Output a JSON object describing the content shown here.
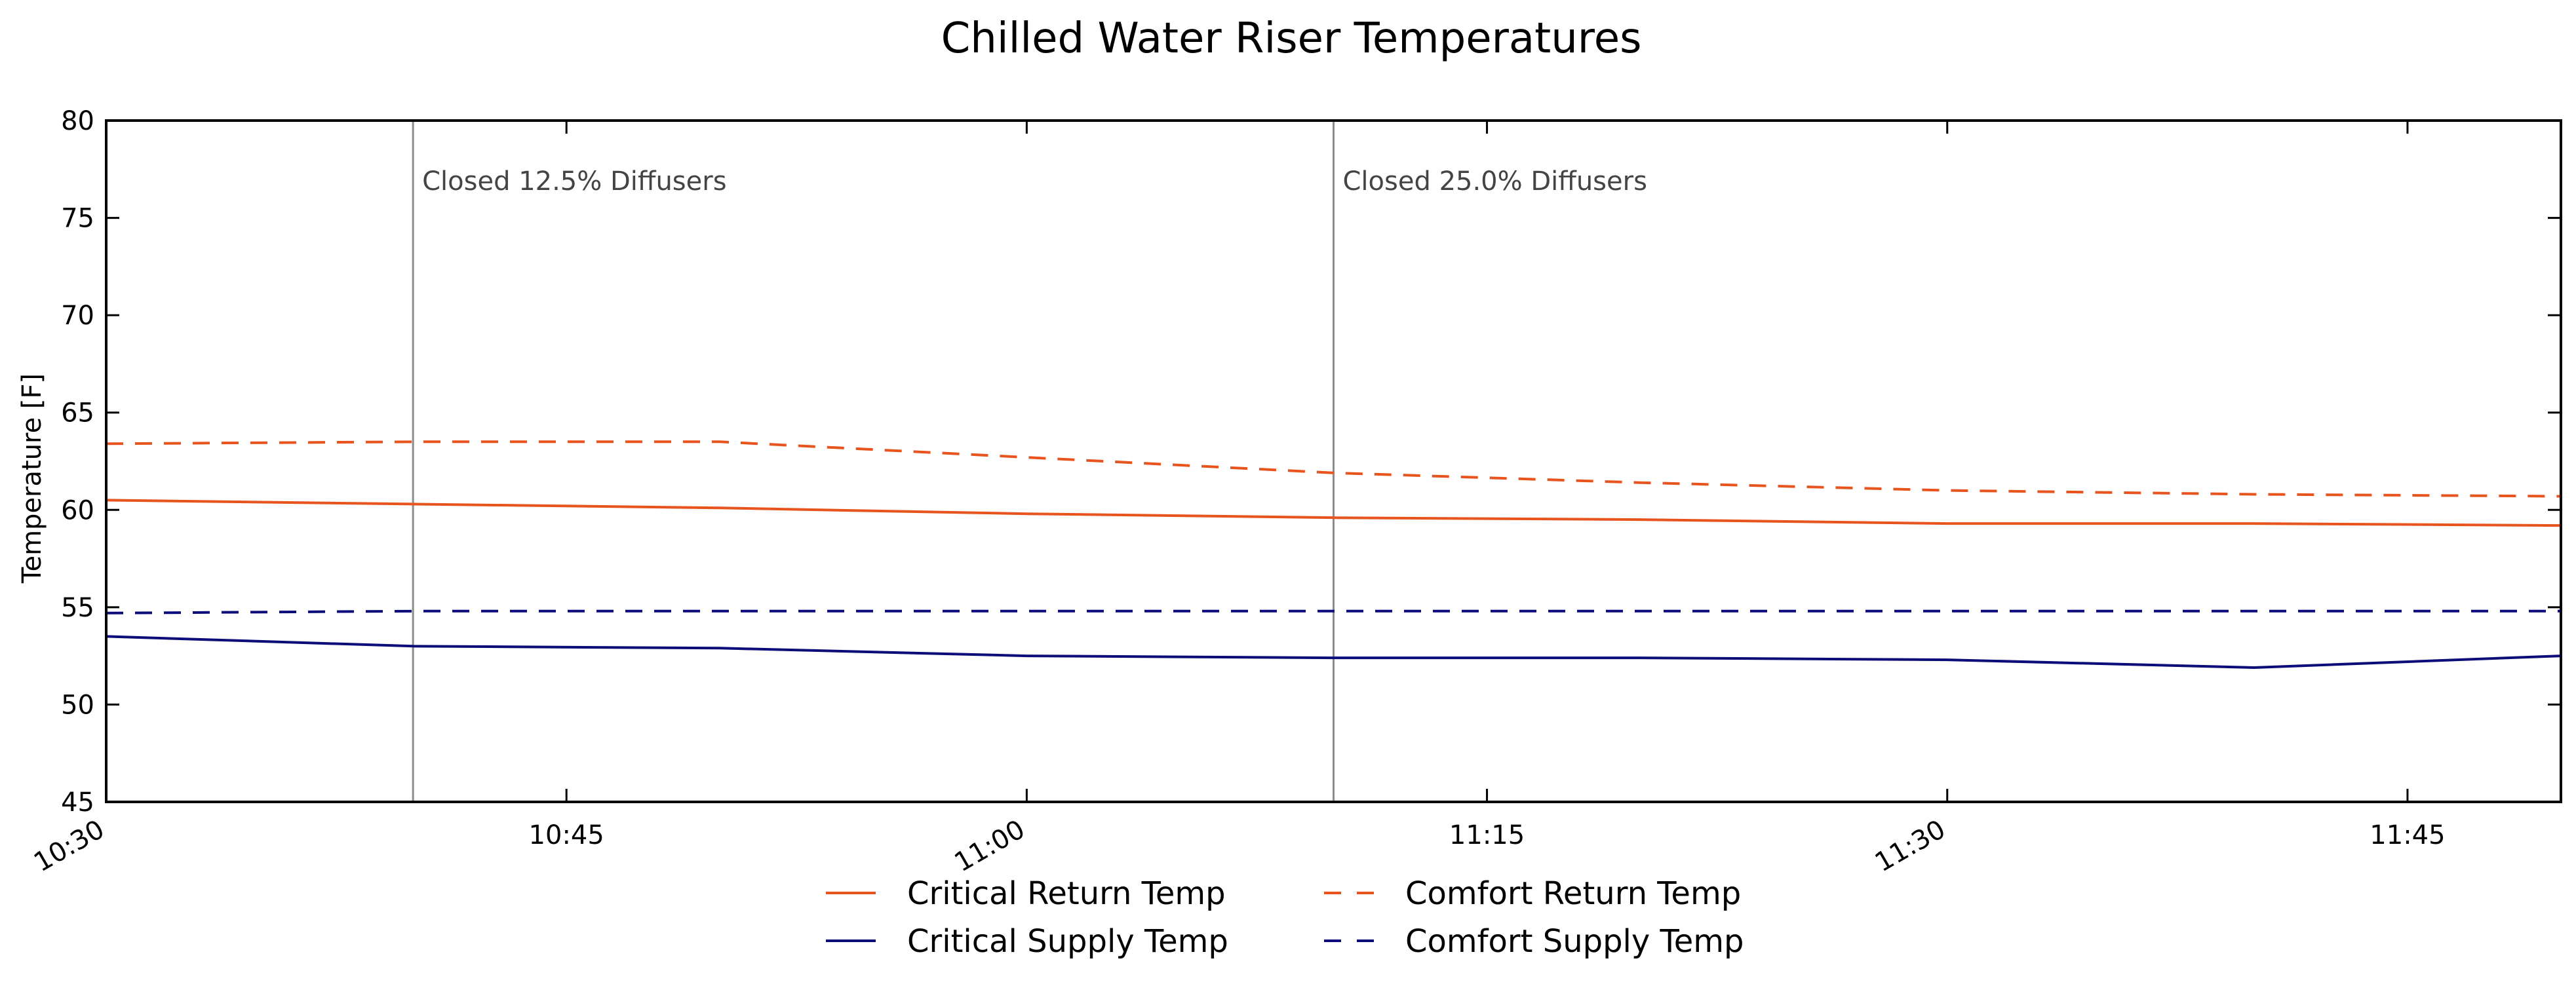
{
  "chart_data": {
    "type": "line",
    "title": "Chilled Water Riser Temperatures",
    "xlabel": "",
    "ylabel": "Temperature [F]",
    "xlim": [
      "10:30",
      "11:50"
    ],
    "ylim": [
      45,
      80
    ],
    "x_ticks": [
      "10:30",
      "10:45",
      "11:00",
      "11:15",
      "11:30",
      "11:45"
    ],
    "y_ticks": [
      45,
      50,
      55,
      60,
      65,
      70,
      75,
      80
    ],
    "grid": false,
    "legend_position": "bottom-center",
    "x": [
      "10:30",
      "10:40",
      "10:50",
      "11:00",
      "11:10",
      "11:20",
      "11:30",
      "11:40",
      "11:50"
    ],
    "series": [
      {
        "name": "Critical Return Temp",
        "color": "#e8541e",
        "style": "solid",
        "values": [
          60.5,
          60.3,
          60.1,
          59.8,
          59.6,
          59.5,
          59.3,
          59.3,
          59.2
        ]
      },
      {
        "name": "Critical Supply Temp",
        "color": "#0d0d7a",
        "style": "solid",
        "values": [
          53.5,
          53.0,
          52.9,
          52.5,
          52.4,
          52.4,
          52.3,
          51.9,
          52.5
        ]
      },
      {
        "name": "Comfort Return Temp",
        "color": "#e8541e",
        "style": "dashed",
        "values": [
          63.4,
          63.5,
          63.5,
          62.7,
          61.9,
          61.4,
          61.0,
          60.8,
          60.7
        ]
      },
      {
        "name": "Comfort Supply Temp",
        "color": "#0d0d7a",
        "style": "dashed",
        "values": [
          54.7,
          54.8,
          54.8,
          54.8,
          54.8,
          54.8,
          54.8,
          54.8,
          54.8
        ]
      }
    ],
    "annotations": [
      {
        "x": "10:40",
        "text": "Closed 12.5% Diffusers"
      },
      {
        "x": "11:10",
        "text": "Closed 25.0% Diffusers"
      }
    ]
  }
}
